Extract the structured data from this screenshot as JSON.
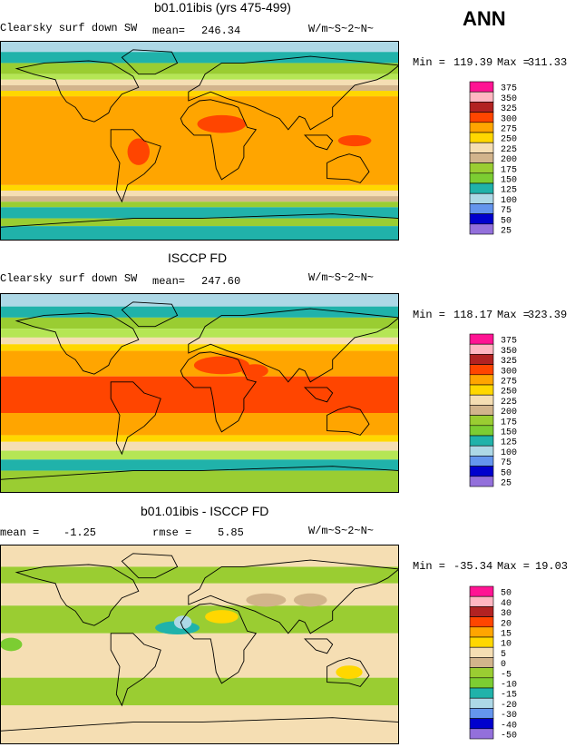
{
  "figure": {
    "season": "ANN",
    "units": "W/m~S~2~N~",
    "variable": "Clearsky surf down SW"
  },
  "chart_data": [
    {
      "type": "heatmap",
      "kind": "global-map",
      "title": "b01.01ibis (yrs 475-499)",
      "subtitle": "Clearsky surf down SW",
      "mean_label": "mean=",
      "mean": "246.34",
      "units": "W/m~S~2~N~",
      "min_label": "Min =",
      "min": "119.39",
      "max_label": "Max =",
      "max": "311.33",
      "colorbar": {
        "levels": [
          "375",
          "350",
          "325",
          "300",
          "275",
          "250",
          "225",
          "200",
          "175",
          "150",
          "125",
          "100",
          "75",
          "50",
          "25"
        ],
        "colors": [
          "#ff1493",
          "#ffb6c1",
          "#b22222",
          "#ff4500",
          "#ffa500",
          "#ffd700",
          "#f5deb3",
          "#d2b48c",
          "#9acd32",
          "#7ccd32",
          "#20b2aa",
          "#add8e6",
          "#6495ed",
          "#0000cd",
          "#9370db"
        ]
      },
      "bands": [
        {
          "lat_from": 90,
          "lat_to": 80,
          "color": "#add8e6"
        },
        {
          "lat_from": 80,
          "lat_to": 70,
          "color": "#20b2aa"
        },
        {
          "lat_from": 70,
          "lat_to": 60,
          "color": "#9acd32"
        },
        {
          "lat_from": 60,
          "lat_to": 55,
          "color": "#b5e655"
        },
        {
          "lat_from": 55,
          "lat_to": 50,
          "color": "#f5deb3"
        },
        {
          "lat_from": 50,
          "lat_to": 45,
          "color": "#d2b48c"
        },
        {
          "lat_from": 45,
          "lat_to": 40,
          "color": "#ffd700"
        },
        {
          "lat_from": 40,
          "lat_to": -40,
          "color": "#ffa500"
        },
        {
          "lat_from": -40,
          "lat_to": -45,
          "color": "#ffd700"
        },
        {
          "lat_from": -45,
          "lat_to": -50,
          "color": "#f5deb3"
        },
        {
          "lat_from": -50,
          "lat_to": -55,
          "color": "#d2b48c"
        },
        {
          "lat_from": -55,
          "lat_to": -60,
          "color": "#9acd32"
        },
        {
          "lat_from": -60,
          "lat_to": -70,
          "color": "#20b2aa"
        },
        {
          "lat_from": -70,
          "lat_to": -77,
          "color": "#9acd32"
        },
        {
          "lat_from": -77,
          "lat_to": -90,
          "color": "#20b2aa"
        }
      ],
      "blobs": [
        {
          "lon": 20,
          "lat": 15,
          "rlon": 22,
          "rlat": 8,
          "color": "#ff4500"
        },
        {
          "lon": 140,
          "lat": 0,
          "rlon": 15,
          "rlat": 5,
          "color": "#ff4500"
        },
        {
          "lon": -55,
          "lat": -10,
          "rlon": 10,
          "rlat": 12,
          "color": "#ff4500"
        }
      ]
    },
    {
      "type": "heatmap",
      "kind": "global-map",
      "title": "ISCCP FD",
      "subtitle": "Clearsky surf down SW",
      "mean_label": "mean=",
      "mean": "247.60",
      "units": "W/m~S~2~N~",
      "min_label": "Min =",
      "min": "118.17",
      "max_label": "Max =",
      "max": "323.39",
      "colorbar": {
        "levels": [
          "375",
          "350",
          "325",
          "300",
          "275",
          "250",
          "225",
          "200",
          "175",
          "150",
          "125",
          "100",
          "75",
          "50",
          "25"
        ],
        "colors": [
          "#ff1493",
          "#ffb6c1",
          "#b22222",
          "#ff4500",
          "#ffa500",
          "#ffd700",
          "#f5deb3",
          "#d2b48c",
          "#9acd32",
          "#7ccd32",
          "#20b2aa",
          "#add8e6",
          "#6495ed",
          "#0000cd",
          "#9370db"
        ]
      },
      "bands": [
        {
          "lat_from": 90,
          "lat_to": 78,
          "color": "#add8e6"
        },
        {
          "lat_from": 78,
          "lat_to": 68,
          "color": "#20b2aa"
        },
        {
          "lat_from": 68,
          "lat_to": 58,
          "color": "#9acd32"
        },
        {
          "lat_from": 58,
          "lat_to": 50,
          "color": "#b5e655"
        },
        {
          "lat_from": 50,
          "lat_to": 44,
          "color": "#f5deb3"
        },
        {
          "lat_from": 44,
          "lat_to": 38,
          "color": "#ffd700"
        },
        {
          "lat_from": 38,
          "lat_to": 15,
          "color": "#ffa500"
        },
        {
          "lat_from": 15,
          "lat_to": -18,
          "color": "#ff4500"
        },
        {
          "lat_from": -18,
          "lat_to": -38,
          "color": "#ffa500"
        },
        {
          "lat_from": -38,
          "lat_to": -44,
          "color": "#ffd700"
        },
        {
          "lat_from": -44,
          "lat_to": -52,
          "color": "#f5deb3"
        },
        {
          "lat_from": -52,
          "lat_to": -60,
          "color": "#b5e655"
        },
        {
          "lat_from": -60,
          "lat_to": -70,
          "color": "#20b2aa"
        },
        {
          "lat_from": -70,
          "lat_to": -90,
          "color": "#9acd32"
        }
      ],
      "blobs": [
        {
          "lon": 20,
          "lat": 25,
          "rlon": 25,
          "rlat": 8,
          "color": "#ff4500"
        },
        {
          "lon": 50,
          "lat": 20,
          "rlon": 12,
          "rlat": 6,
          "color": "#ff4500"
        }
      ]
    },
    {
      "type": "heatmap",
      "kind": "global-map",
      "title": "b01.01ibis - ISCCP FD",
      "mean_label": "mean =",
      "mean": "-1.25",
      "rmse_label": "rmse =",
      "rmse": "5.85",
      "units": "W/m~S~2~N~",
      "min_label": "Min =",
      "min": "-35.34",
      "max_label": "Max =",
      "max": "19.03",
      "colorbar": {
        "levels": [
          "50",
          "40",
          "30",
          "20",
          "15",
          "10",
          "5",
          "0",
          "-5",
          "-10",
          "-15",
          "-20",
          "-30",
          "-40",
          "-50"
        ],
        "colors": [
          "#ff1493",
          "#ffb6c1",
          "#b22222",
          "#ff4500",
          "#ffa500",
          "#ffd700",
          "#f5deb3",
          "#d2b48c",
          "#9acd32",
          "#7ccd32",
          "#20b2aa",
          "#add8e6",
          "#6495ed",
          "#0000cd",
          "#9370db"
        ]
      },
      "bands": [
        {
          "lat_from": 90,
          "lat_to": 70,
          "color": "#f5deb3"
        },
        {
          "lat_from": 70,
          "lat_to": 55,
          "color": "#9acd32"
        },
        {
          "lat_from": 55,
          "lat_to": 35,
          "color": "#f5deb3"
        },
        {
          "lat_from": 35,
          "lat_to": 10,
          "color": "#9acd32"
        },
        {
          "lat_from": 10,
          "lat_to": -30,
          "color": "#f5deb3"
        },
        {
          "lat_from": -30,
          "lat_to": -55,
          "color": "#9acd32"
        },
        {
          "lat_from": -55,
          "lat_to": -90,
          "color": "#f5deb3"
        }
      ],
      "blobs": [
        {
          "lon": -20,
          "lat": 15,
          "rlon": 20,
          "rlat": 6,
          "color": "#20b2aa"
        },
        {
          "lon": -170,
          "lat": 0,
          "rlon": 10,
          "rlat": 6,
          "color": "#7ccd32"
        },
        {
          "lon": 20,
          "lat": 25,
          "rlon": 15,
          "rlat": 6,
          "color": "#ffd700"
        },
        {
          "lon": 135,
          "lat": -25,
          "rlon": 12,
          "rlat": 6,
          "color": "#ffd700"
        },
        {
          "lon": -15,
          "lat": 20,
          "rlon": 8,
          "rlat": 6,
          "color": "#add8e6"
        },
        {
          "lon": 60,
          "lat": 40,
          "rlon": 18,
          "rlat": 6,
          "color": "#d2b48c"
        },
        {
          "lon": 100,
          "lat": 40,
          "rlon": 15,
          "rlat": 6,
          "color": "#d2b48c"
        }
      ]
    }
  ]
}
